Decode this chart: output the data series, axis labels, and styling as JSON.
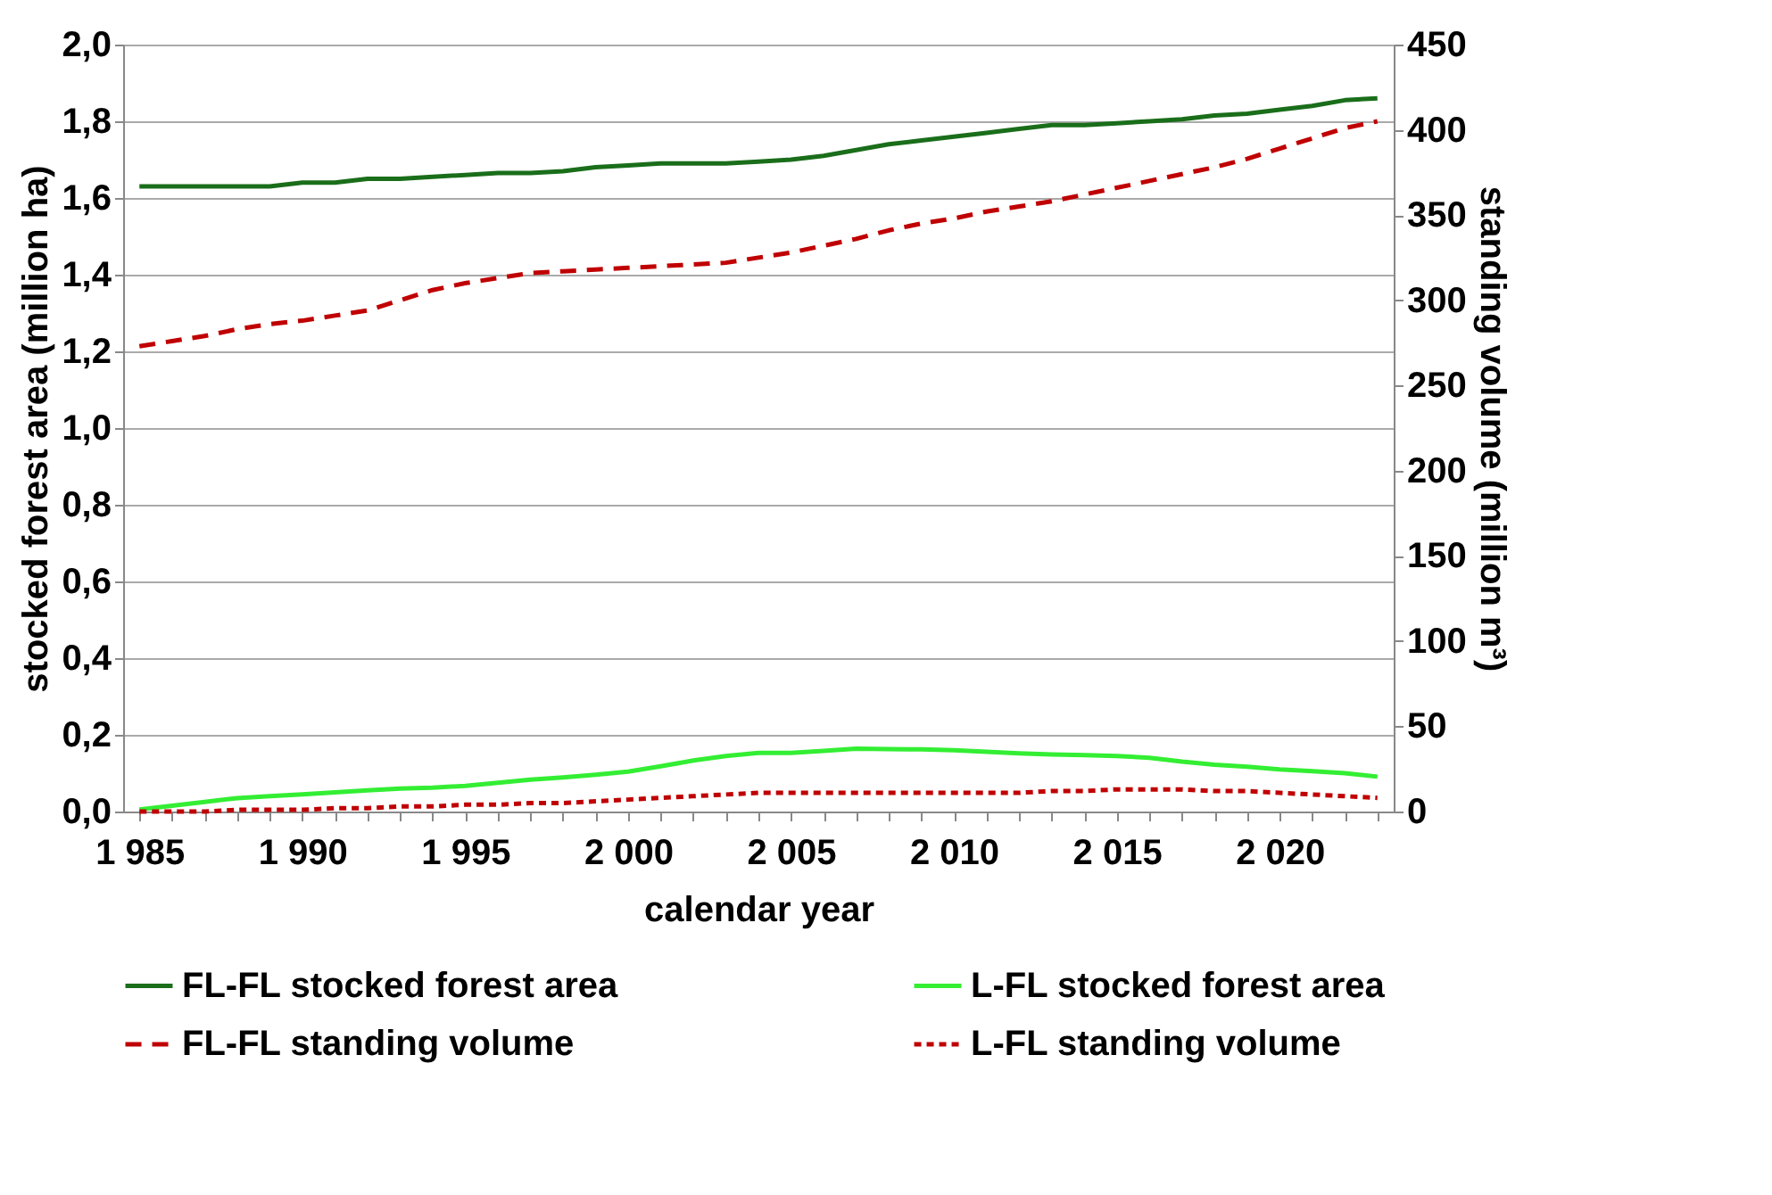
{
  "chart_data": {
    "type": "line",
    "xlabel": "calendar year",
    "ylabel": "stocked forest area (million ha)",
    "y2label": "standing volume (million m³)",
    "categories": [
      "1 985",
      null,
      null,
      null,
      null,
      "1 990",
      null,
      null,
      null,
      null,
      "1 995",
      null,
      null,
      null,
      null,
      "2 000",
      null,
      null,
      null,
      null,
      "2 005",
      null,
      null,
      null,
      null,
      "2 010",
      null,
      null,
      null,
      null,
      "2 015",
      null,
      null,
      null,
      null,
      "2 020",
      null,
      null,
      null
    ],
    "series": [
      {
        "name": "FL-FL stocked forest area",
        "color": "#1a6e1a",
        "line_style": "solid",
        "values": [
          1.63,
          1.63,
          1.63,
          1.63,
          1.63,
          1.64,
          1.64,
          1.65,
          1.65,
          1.655,
          1.66,
          1.665,
          1.665,
          1.67,
          1.68,
          1.685,
          1.69,
          1.69,
          1.69,
          1.695,
          1.7,
          1.71,
          1.725,
          1.74,
          1.75,
          1.76,
          1.77,
          1.78,
          1.79,
          1.79,
          1.795,
          1.8,
          1.805,
          1.815,
          1.82,
          1.83,
          1.84,
          1.855,
          1.86
        ]
      },
      {
        "name": "L-FL stocked forest area",
        "color": "#33ee33",
        "line_style": "solid",
        "values": [
          0.005,
          0.015,
          0.025,
          0.035,
          0.04,
          0.045,
          0.05,
          0.055,
          0.06,
          0.062,
          0.067,
          0.075,
          0.083,
          0.089,
          0.096,
          0.104,
          0.118,
          0.133,
          0.145,
          0.153,
          0.153,
          0.158,
          0.164,
          0.163,
          0.162,
          0.16,
          0.156,
          0.152,
          0.149,
          0.147,
          0.145,
          0.14,
          0.13,
          0.122,
          0.117,
          0.11,
          0.105,
          0.1,
          0.091
        ]
      },
      {
        "name": "FL-FL standing volume",
        "color": "#c00000",
        "line_style": "dashed",
        "axis": "y2",
        "values": [
          273,
          276,
          279,
          283,
          286,
          288,
          291,
          294,
          300,
          306,
          310,
          313,
          316,
          317,
          318,
          319,
          320,
          321,
          322,
          325,
          328,
          332,
          336,
          341,
          345,
          348,
          352,
          355,
          358,
          362,
          366,
          370,
          374,
          378,
          383,
          389,
          395,
          401,
          405
        ]
      },
      {
        "name": "L-FL standing volume",
        "color": "#c00000",
        "line_style": "dotted",
        "axis": "y2",
        "values": [
          0,
          0,
          0,
          1,
          1,
          1,
          2,
          2,
          3,
          3,
          4,
          4,
          5,
          5,
          6,
          7,
          8,
          9,
          10,
          11,
          11,
          11,
          11,
          11,
          11,
          11,
          11,
          11,
          12,
          12,
          13,
          13,
          13,
          12,
          12,
          11,
          10,
          9,
          8
        ]
      }
    ],
    "ylim": [
      0,
      2.0
    ],
    "yticks": [
      {
        "value": 0,
        "label": "0,0"
      },
      {
        "value": 0.2,
        "label": "0,2"
      },
      {
        "value": 0.4,
        "label": "0,4"
      },
      {
        "value": 0.6,
        "label": "0,6"
      },
      {
        "value": 0.8,
        "label": "0,8"
      },
      {
        "value": 1.0,
        "label": "1,0"
      },
      {
        "value": 1.2,
        "label": "1,2"
      },
      {
        "value": 1.4,
        "label": "1,4"
      },
      {
        "value": 1.6,
        "label": "1,6"
      },
      {
        "value": 1.8,
        "label": "1,8"
      },
      {
        "value": 2.0,
        "label": "2,0"
      }
    ],
    "y2lim": [
      0,
      450
    ],
    "y2ticks": [
      0,
      50,
      100,
      150,
      200,
      250,
      300,
      350,
      400,
      450
    ],
    "grid": "y",
    "legend": "bottom",
    "marker": "none"
  }
}
